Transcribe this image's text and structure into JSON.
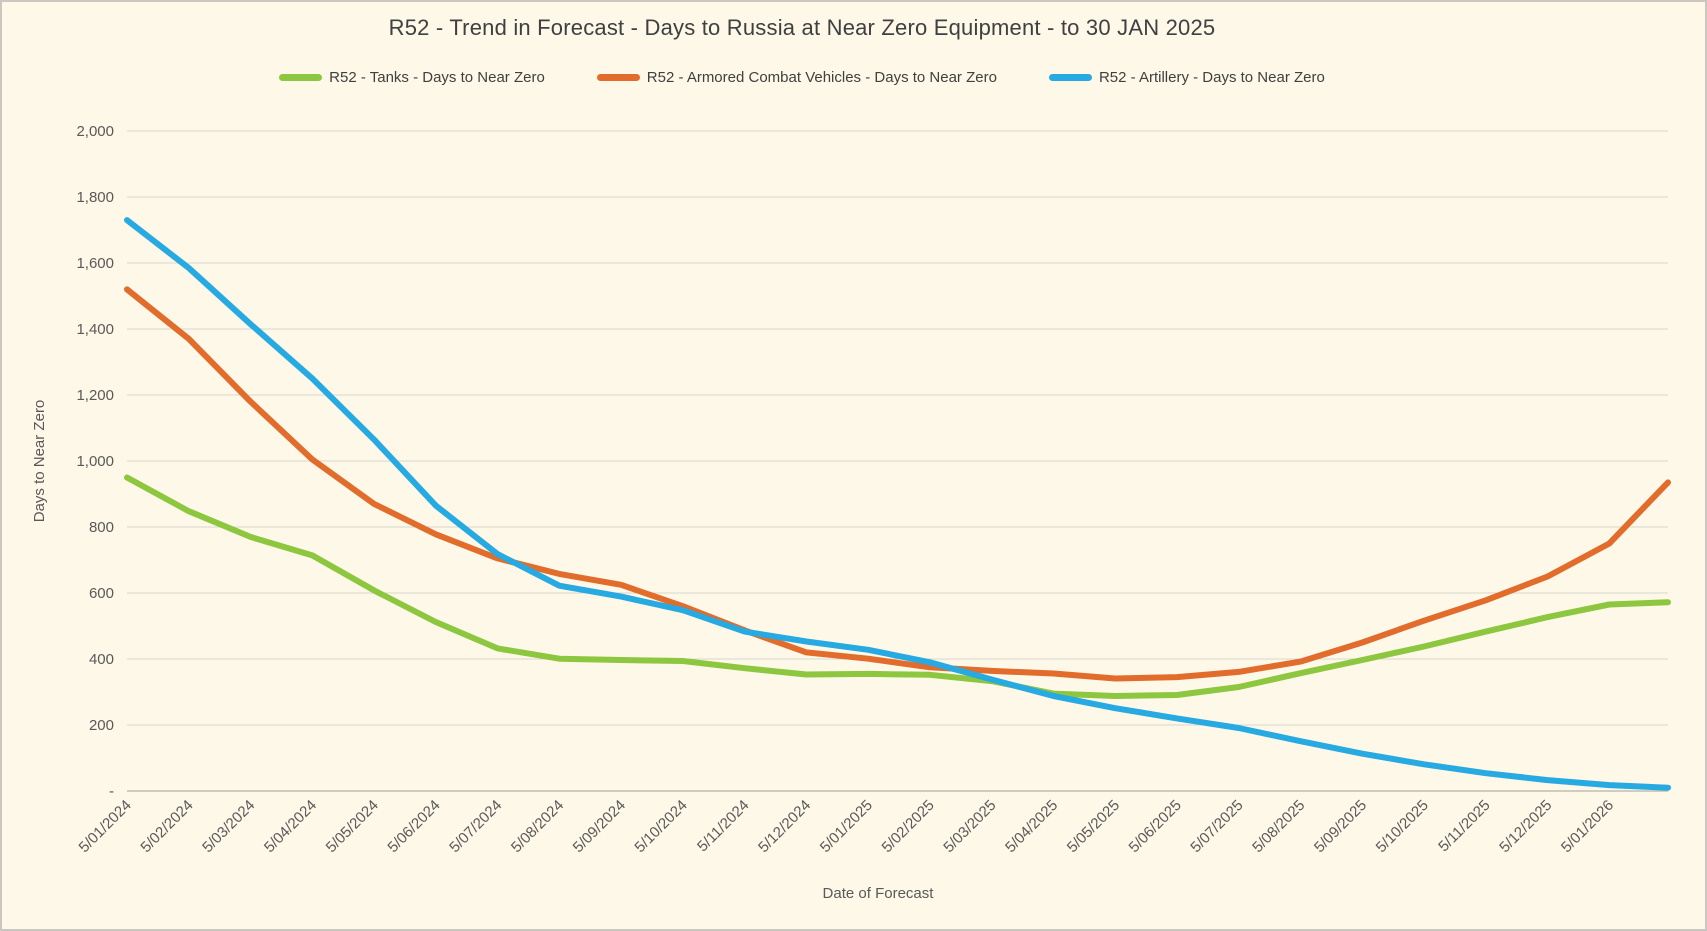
{
  "theme": {
    "background": "#FDF8E7",
    "gridline": "#d9d7cf",
    "zero_line": "#c0beb6",
    "axis_text": "#595959",
    "title_text": "#3f4041"
  },
  "header": {
    "title": "R52 - Trend in Forecast - Days to Russia at Near Zero Equipment - to 30 JAN 2025"
  },
  "legend": {
    "items": [
      {
        "label": "R52 - Tanks - Days to Near Zero"
      },
      {
        "label": "R52 - Armored Combat Vehicles - Days to Near Zero"
      },
      {
        "label": "R52 - Artillery - Days to Near Zero"
      }
    ]
  },
  "axes": {
    "x_title": "Date of Forecast",
    "y_title": "Days to Near Zero"
  },
  "chart_data": {
    "type": "line",
    "title": "R52 - Trend in Forecast - Days to Russia at Near Zero Equipment - to 30 JAN 2025",
    "xlabel": "Date of Forecast",
    "ylabel": "Days to Near Zero",
    "ylim": [
      0,
      2000
    ],
    "ytick_interval": 200,
    "ytick_labels": [
      "-",
      "200",
      "400",
      "600",
      "800",
      "1,000",
      "1,200",
      "1,400",
      "1,600",
      "1,800",
      "2,000"
    ],
    "grid": "horizontal-only",
    "legend_position": "top",
    "categories": [
      "5/01/2024",
      "5/02/2024",
      "5/03/2024",
      "5/04/2024",
      "5/05/2024",
      "5/06/2024",
      "5/07/2024",
      "5/08/2024",
      "5/09/2024",
      "5/10/2024",
      "5/11/2024",
      "5/12/2024",
      "5/01/2025",
      "5/02/2025",
      "5/03/2025",
      "5/04/2025",
      "5/05/2025",
      "5/06/2025",
      "5/07/2025",
      "5/08/2025",
      "5/09/2025",
      "5/10/2025",
      "5/11/2025",
      "5/12/2025",
      "5/01/2026"
    ],
    "x_units_total": 24.95,
    "note": "Series data extends slightly past the last axis label to the plot edge; end_value is the terminal value at x_units_total.",
    "series": [
      {
        "name": "R52 - Tanks - Days to Near Zero",
        "color": "#8dc63f",
        "values": [
          950,
          848,
          770,
          714,
          608,
          512,
          432,
          401,
          397,
          394,
          372,
          353,
          355,
          352,
          333,
          295,
          288,
          291,
          315,
          357,
          397,
          438,
          483,
          527,
          565
        ],
        "end_value": 572
      },
      {
        "name": "R52 - Armored Combat Vehicles - Days to Near Zero",
        "color": "#e16c2b",
        "values": [
          1520,
          1370,
          1180,
          1005,
          870,
          778,
          705,
          658,
          625,
          560,
          487,
          420,
          401,
          375,
          364,
          356,
          341,
          345,
          361,
          392,
          450,
          516,
          578,
          650,
          750
        ],
        "end_value": 935
      },
      {
        "name": "R52 - Artillery - Days to Near Zero",
        "color": "#27a9e1",
        "values": [
          1730,
          1585,
          1415,
          1250,
          1065,
          865,
          718,
          622,
          589,
          548,
          483,
          453,
          428,
          390,
          338,
          288,
          251,
          220,
          191,
          151,
          113,
          81,
          54,
          33,
          18
        ],
        "end_value": 10
      }
    ]
  }
}
